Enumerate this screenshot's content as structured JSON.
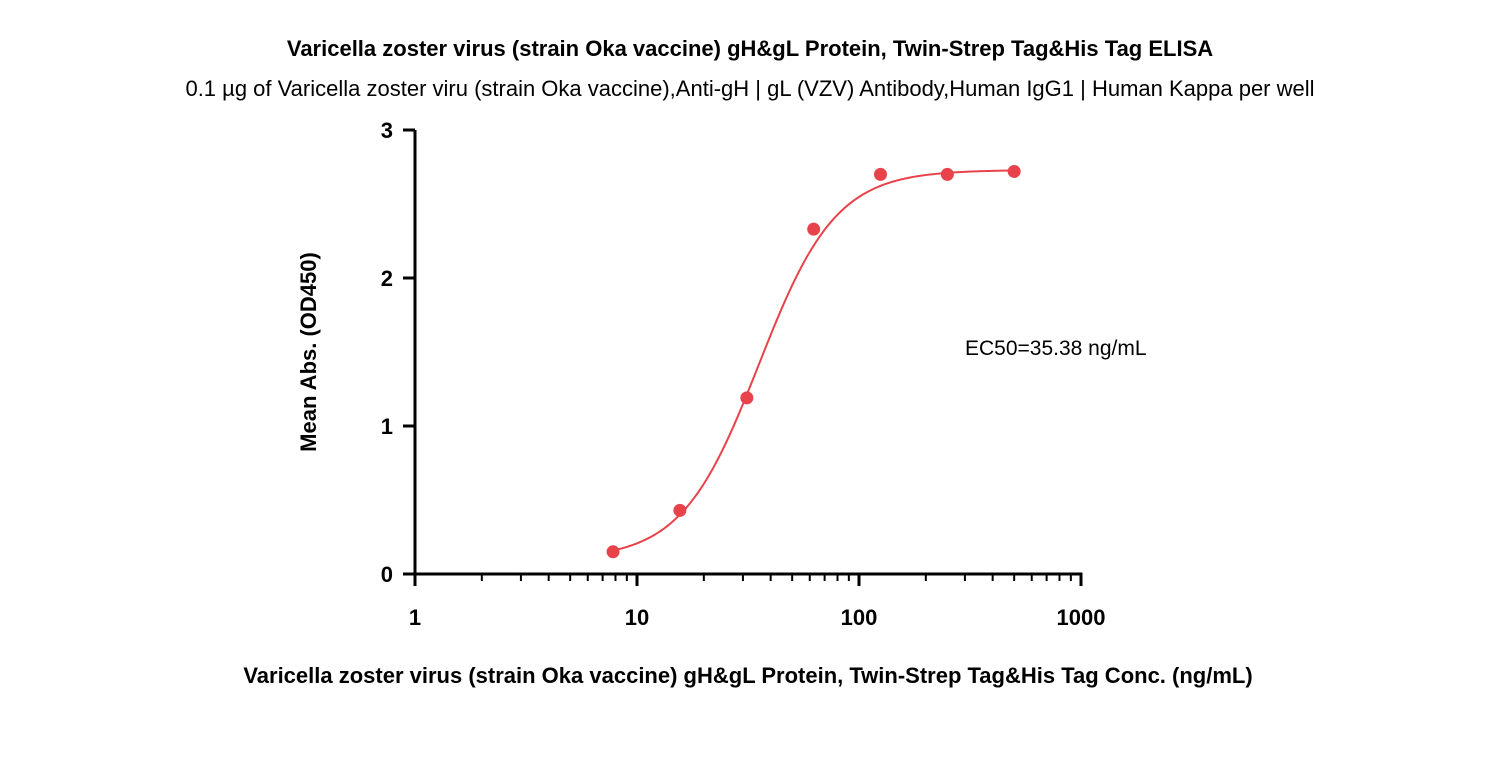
{
  "chart_data": {
    "type": "scatter",
    "title": "Varicella zoster virus (strain Oka vaccine) gH&gL Protein, Twin-Strep Tag&His Tag ELISA",
    "subtitle": "0.1 µg of Varicella zoster viru (strain Oka vaccine),Anti-gH | gL (VZV) Antibody,Human IgG1 | Human Kappa per well",
    "xlabel": "Varicella zoster virus (strain Oka vaccine) gH&gL Protein, Twin-Strep Tag&His Tag Conc. (ng/mL)",
    "ylabel": "Mean Abs. (OD450)",
    "x_scale": "log",
    "xlim": [
      1,
      1000
    ],
    "ylim": [
      0,
      3
    ],
    "x_ticks": [
      "1",
      "10",
      "100",
      "1000"
    ],
    "y_ticks": [
      "0",
      "1",
      "2",
      "3"
    ],
    "annotation": "EC50=35.38 ng/mL",
    "grid": false,
    "series": [
      {
        "x": [
          7.8,
          15.6,
          31.25,
          62.5,
          125,
          250,
          500
        ],
        "y": [
          0.15,
          0.43,
          1.19,
          2.33,
          2.7,
          2.7,
          2.72
        ]
      }
    ],
    "fit": {
      "model": "4PL",
      "bottom": 0.1,
      "top": 2.73,
      "ec50": 35.38,
      "hill": 2.5
    },
    "color": "#e8434b"
  }
}
